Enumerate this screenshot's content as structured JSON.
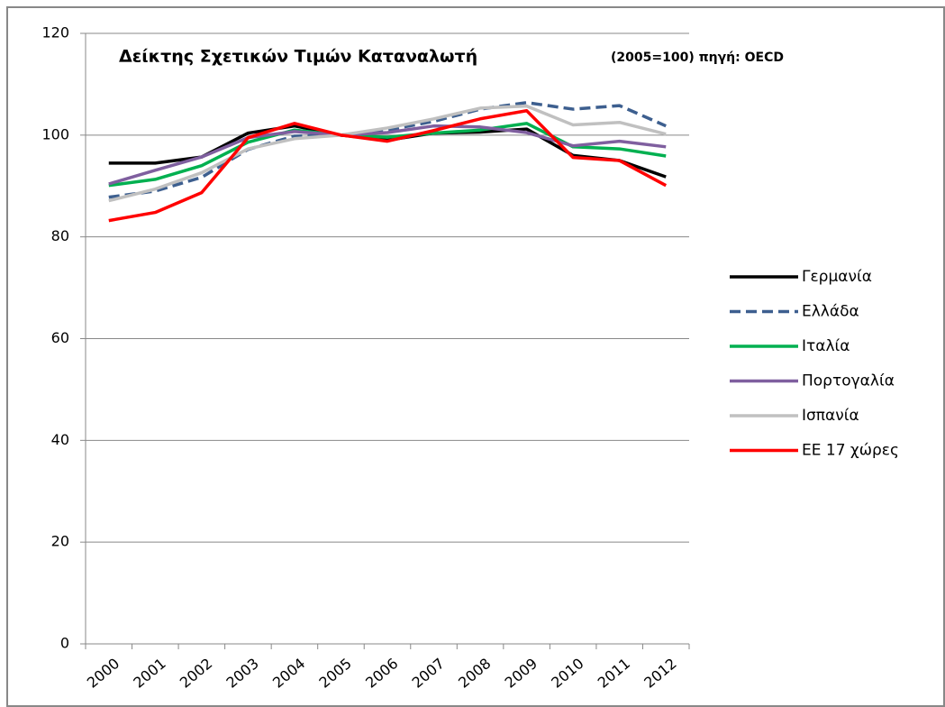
{
  "chart_data": {
    "type": "line",
    "title": "Δείκτης Σχετικών Τιμών Καταναλωτή",
    "subtitle": "(2005=100) πηγή: OECD",
    "categories": [
      "2000",
      "2001",
      "2002",
      "2003",
      "2004",
      "2005",
      "2006",
      "2007",
      "2008",
      "2009",
      "2010",
      "2011",
      "2012"
    ],
    "series": [
      {
        "name": "Γερμανία",
        "color": "#000000",
        "values": [
          94.5,
          94.5,
          95.7,
          100.4,
          101.8,
          100,
          99,
          100.4,
          100.6,
          101.2,
          96,
          95,
          91.8
        ]
      },
      {
        "name": "Ελλάδα",
        "color": "#3d5f8f",
        "style": "dashed",
        "values": [
          87.8,
          89,
          91.7,
          97.2,
          99.8,
          100,
          101,
          102.7,
          105.1,
          106.4,
          105.1,
          105.8,
          101.8
        ]
      },
      {
        "name": "Ιταλία",
        "color": "#00b050",
        "values": [
          90.1,
          91.3,
          94,
          98.6,
          101,
          100,
          99.6,
          100.4,
          101,
          102.3,
          97.7,
          97.3,
          95.9
        ]
      },
      {
        "name": "Πορτογαλία",
        "color": "#7f5f9f",
        "values": [
          90.4,
          93.1,
          95.7,
          99.5,
          100.7,
          100,
          100.5,
          101.8,
          101.6,
          100.5,
          97.9,
          98.8,
          97.7
        ]
      },
      {
        "name": "Ισπανία",
        "color": "#c0c0c0",
        "values": [
          87.1,
          89.4,
          92.6,
          97.3,
          99.3,
          100,
          101.4,
          103.2,
          105.3,
          105.7,
          102,
          102.5,
          100.2
        ]
      },
      {
        "name": "ΕΕ 17 χώρες",
        "color": "#ff0000",
        "values": [
          83.2,
          84.8,
          88.7,
          99.5,
          102.3,
          100,
          98.8,
          100.9,
          103.2,
          104.8,
          95.6,
          95,
          90.1
        ]
      }
    ],
    "ylim": [
      0,
      120
    ],
    "yticks": [
      0,
      20,
      40,
      60,
      80,
      100,
      120
    ],
    "grid": true,
    "legend": "right"
  }
}
